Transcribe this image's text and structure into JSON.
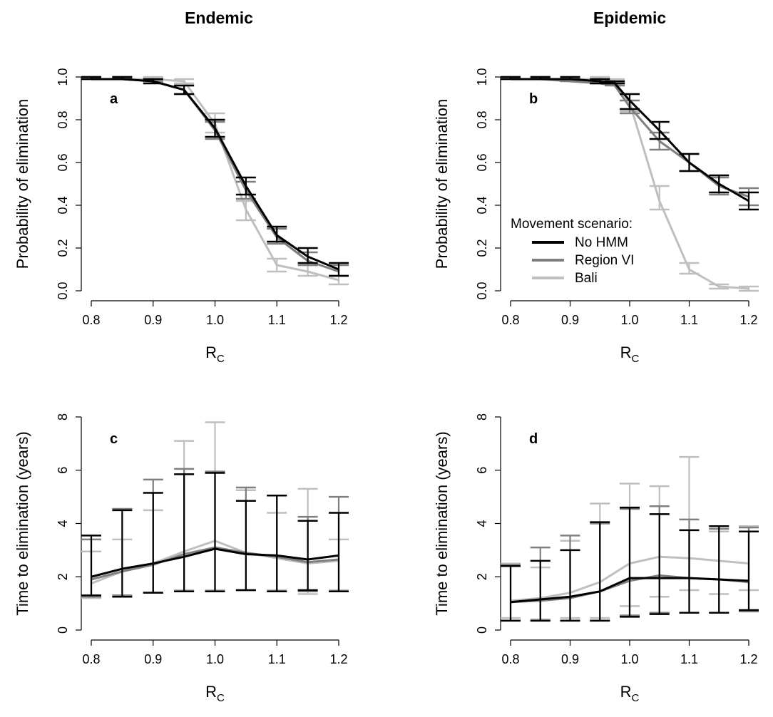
{
  "column_titles": [
    "Endemic",
    "Epidemic"
  ],
  "colors": {
    "no_hmm": "#000000",
    "region_vi": "#7f7f7f",
    "bali": "#bfbfbf"
  },
  "chart_data": [
    {
      "type": "line",
      "panel_label": "a",
      "xlabel": "R",
      "xlabel_sub": "C",
      "ylabel": "Probability of elimination",
      "xlim": [
        0.8,
        1.2
      ],
      "ylim": [
        0.0,
        1.0
      ],
      "xticks": [
        "0.8",
        "0.9",
        "1.0",
        "1.1",
        "1.2"
      ],
      "yticks": [
        "0.0",
        "0.2",
        "0.4",
        "0.6",
        "0.8",
        "1.0"
      ],
      "x": [
        0.8,
        0.85,
        0.9,
        0.95,
        1.0,
        1.05,
        1.1,
        1.15,
        1.2
      ],
      "series": [
        {
          "name": "No HMM",
          "color": "#000000",
          "values": [
            0.99,
            0.99,
            0.98,
            0.94,
            0.76,
            0.49,
            0.26,
            0.16,
            0.1
          ],
          "lower": [
            0.99,
            0.99,
            0.97,
            0.92,
            0.72,
            0.45,
            0.23,
            0.13,
            0.07
          ],
          "upper": [
            1.0,
            1.0,
            0.99,
            0.96,
            0.8,
            0.53,
            0.3,
            0.2,
            0.13
          ]
        },
        {
          "name": "Region VI",
          "color": "#7f7f7f",
          "values": [
            0.99,
            0.99,
            0.98,
            0.94,
            0.75,
            0.47,
            0.25,
            0.14,
            0.09
          ],
          "lower": [
            0.99,
            0.99,
            0.98,
            0.92,
            0.71,
            0.43,
            0.22,
            0.12,
            0.07
          ],
          "upper": [
            1.0,
            1.0,
            0.99,
            0.96,
            0.79,
            0.51,
            0.29,
            0.18,
            0.12
          ]
        },
        {
          "name": "Bali",
          "color": "#bfbfbf",
          "values": [
            0.99,
            0.99,
            0.99,
            0.98,
            0.78,
            0.38,
            0.12,
            0.09,
            0.05
          ],
          "lower": [
            0.99,
            0.99,
            0.99,
            0.97,
            0.74,
            0.33,
            0.09,
            0.07,
            0.03
          ],
          "upper": [
            1.0,
            1.0,
            1.0,
            0.99,
            0.83,
            0.42,
            0.15,
            0.12,
            0.07
          ]
        }
      ]
    },
    {
      "type": "line",
      "panel_label": "b",
      "xlabel": "R",
      "xlabel_sub": "C",
      "ylabel": "Probability of elimination",
      "xlim": [
        0.8,
        1.2
      ],
      "ylim": [
        0.0,
        1.0
      ],
      "xticks": [
        "0.8",
        "0.9",
        "1.0",
        "1.1",
        "1.2"
      ],
      "yticks": [
        "0.0",
        "0.2",
        "0.4",
        "0.6",
        "0.8",
        "1.0"
      ],
      "x": [
        0.8,
        0.85,
        0.9,
        0.95,
        0.975,
        1.0,
        1.05,
        1.1,
        1.15,
        1.2
      ],
      "legend": {
        "title": "Movement scenario:",
        "placement": "bottom-center"
      },
      "series": [
        {
          "name": "No HMM",
          "color": "#000000",
          "values": [
            0.99,
            0.99,
            0.99,
            0.98,
            0.97,
            0.89,
            0.75,
            0.6,
            0.5,
            0.42
          ],
          "lower": [
            0.99,
            0.99,
            0.99,
            0.97,
            0.97,
            0.85,
            0.71,
            0.56,
            0.46,
            0.38
          ],
          "upper": [
            1.0,
            1.0,
            1.0,
            0.99,
            0.98,
            0.92,
            0.79,
            0.64,
            0.54,
            0.46
          ]
        },
        {
          "name": "Region VI",
          "color": "#7f7f7f",
          "values": [
            0.99,
            0.99,
            0.98,
            0.97,
            0.96,
            0.86,
            0.7,
            0.6,
            0.49,
            0.44
          ],
          "lower": [
            0.99,
            0.99,
            0.98,
            0.97,
            0.96,
            0.83,
            0.66,
            0.56,
            0.45,
            0.4
          ],
          "upper": [
            1.0,
            1.0,
            0.99,
            0.98,
            0.97,
            0.89,
            0.74,
            0.64,
            0.53,
            0.48
          ]
        },
        {
          "name": "Bali",
          "color": "#bfbfbf",
          "values": [
            0.99,
            0.99,
            0.99,
            0.99,
            0.98,
            0.88,
            0.42,
            0.1,
            0.02,
            0.01
          ],
          "lower": [
            0.99,
            0.99,
            0.99,
            0.98,
            0.97,
            0.84,
            0.38,
            0.08,
            0.01,
            0.0
          ],
          "upper": [
            1.0,
            1.0,
            1.0,
            1.0,
            0.99,
            0.92,
            0.49,
            0.13,
            0.03,
            0.02
          ]
        }
      ]
    },
    {
      "type": "line",
      "panel_label": "c",
      "xlabel": "R",
      "xlabel_sub": "C",
      "ylabel": "Time to elimination (years)",
      "xlim": [
        0.8,
        1.2
      ],
      "ylim": [
        0,
        8
      ],
      "xticks": [
        "0.8",
        "0.9",
        "1.0",
        "1.1",
        "1.2"
      ],
      "yticks": [
        "0",
        "2",
        "4",
        "6",
        "8"
      ],
      "x": [
        0.8,
        0.85,
        0.9,
        0.95,
        1.0,
        1.05,
        1.1,
        1.15,
        1.2
      ],
      "series": [
        {
          "name": "No HMM",
          "color": "#000000",
          "values": [
            2.0,
            2.3,
            2.5,
            2.75,
            3.05,
            2.85,
            2.8,
            2.65,
            2.8
          ],
          "lower": [
            1.3,
            1.25,
            1.4,
            1.45,
            1.45,
            1.5,
            1.45,
            1.5,
            1.45
          ],
          "upper": [
            3.55,
            4.5,
            5.15,
            5.85,
            5.9,
            4.85,
            5.05,
            4.1,
            4.4
          ]
        },
        {
          "name": "Region VI",
          "color": "#7f7f7f",
          "values": [
            1.9,
            2.2,
            2.45,
            2.85,
            3.1,
            2.9,
            2.75,
            2.55,
            2.65
          ],
          "lower": [
            1.25,
            1.3,
            1.4,
            1.45,
            1.45,
            1.5,
            1.45,
            1.45,
            1.45
          ],
          "upper": [
            3.4,
            4.55,
            5.65,
            6.05,
            5.95,
            5.35,
            5.05,
            4.25,
            5.0
          ]
        },
        {
          "name": "Bali",
          "color": "#bfbfbf",
          "values": [
            1.75,
            2.2,
            2.5,
            2.95,
            3.35,
            2.9,
            2.7,
            2.5,
            2.6
          ],
          "lower": [
            1.2,
            1.3,
            1.4,
            1.5,
            1.5,
            1.5,
            1.5,
            1.35,
            1.5
          ],
          "upper": [
            2.95,
            3.4,
            4.5,
            7.1,
            7.8,
            5.25,
            4.4,
            5.3,
            3.4
          ]
        }
      ]
    },
    {
      "type": "line",
      "panel_label": "d",
      "xlabel": "R",
      "xlabel_sub": "C",
      "ylabel": "Time to elimination (years)",
      "xlim": [
        0.8,
        1.2
      ],
      "ylim": [
        0,
        8
      ],
      "xticks": [
        "0.8",
        "0.9",
        "1.0",
        "1.1",
        "1.2"
      ],
      "yticks": [
        "0",
        "2",
        "4",
        "6",
        "8"
      ],
      "x": [
        0.8,
        0.85,
        0.9,
        0.95,
        1.0,
        1.05,
        1.1,
        1.15,
        1.2
      ],
      "series": [
        {
          "name": "No HMM",
          "color": "#000000",
          "values": [
            1.05,
            1.15,
            1.25,
            1.45,
            1.95,
            1.95,
            1.95,
            1.9,
            1.85
          ],
          "lower": [
            0.35,
            0.35,
            0.35,
            0.35,
            0.5,
            0.6,
            0.65,
            0.65,
            0.75
          ],
          "upper": [
            2.4,
            2.6,
            3.0,
            4.05,
            4.6,
            4.35,
            3.75,
            3.9,
            3.7
          ]
        },
        {
          "name": "Region VI",
          "color": "#7f7f7f",
          "values": [
            1.05,
            1.1,
            1.2,
            1.45,
            1.85,
            2.05,
            1.95,
            1.9,
            1.8
          ],
          "lower": [
            0.35,
            0.35,
            0.35,
            0.35,
            0.55,
            0.65,
            0.65,
            0.65,
            0.7
          ],
          "upper": [
            2.45,
            3.1,
            3.55,
            4.0,
            4.55,
            4.65,
            4.15,
            3.8,
            3.85
          ]
        },
        {
          "name": "Bali",
          "color": "#bfbfbf",
          "values": [
            1.1,
            1.2,
            1.4,
            1.8,
            2.5,
            2.75,
            2.7,
            2.6,
            2.5
          ],
          "lower": [
            0.45,
            0.4,
            0.45,
            0.45,
            0.9,
            1.25,
            1.5,
            1.35,
            1.5
          ],
          "upper": [
            2.5,
            2.35,
            3.35,
            4.75,
            5.5,
            5.4,
            6.5,
            3.7,
            3.9
          ]
        }
      ]
    }
  ]
}
